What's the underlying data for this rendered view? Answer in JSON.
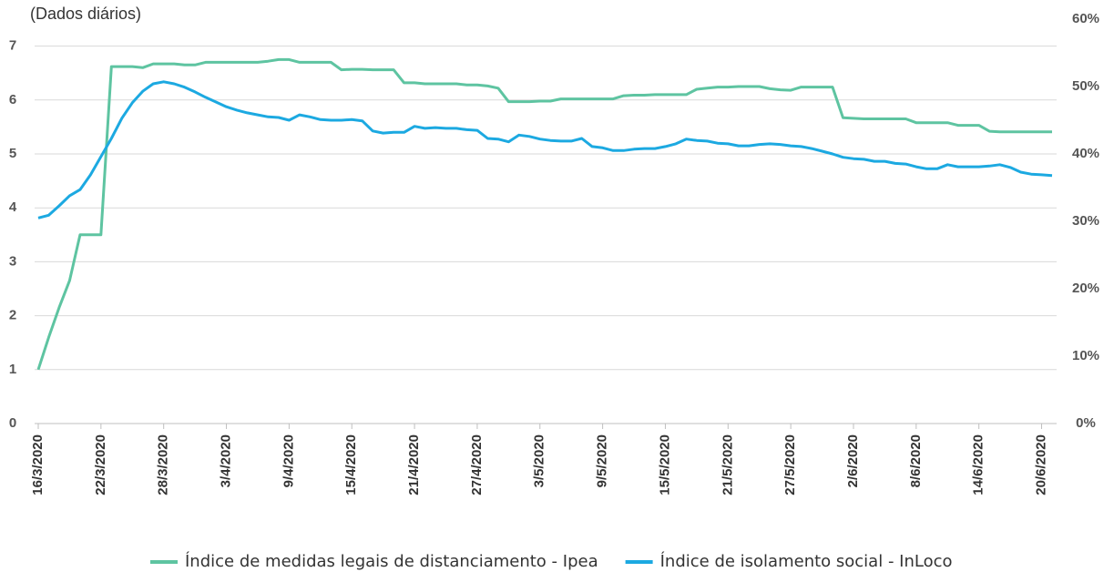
{
  "chart_data": {
    "type": "line",
    "subtitle": "(Dados diários)",
    "categories": [
      "16/3/2020",
      null,
      null,
      null,
      null,
      null,
      "22/3/2020",
      null,
      null,
      null,
      null,
      null,
      "28/3/2020",
      null,
      null,
      null,
      null,
      null,
      "3/4/2020",
      null,
      null,
      null,
      null,
      null,
      "9/4/2020",
      null,
      null,
      null,
      null,
      null,
      "15/4/2020",
      null,
      null,
      null,
      null,
      null,
      "21/4/2020",
      null,
      null,
      null,
      null,
      null,
      "27/4/2020",
      null,
      null,
      null,
      null,
      null,
      "3/5/2020",
      null,
      null,
      null,
      null,
      null,
      "9/5/2020",
      null,
      null,
      null,
      null,
      null,
      "15/5/2020",
      null,
      null,
      null,
      null,
      null,
      "21/5/2020",
      null,
      null,
      null,
      null,
      null,
      "27/5/2020",
      null,
      null,
      null,
      null,
      null,
      "2/6/2020",
      null,
      null,
      null,
      null,
      null,
      "8/6/2020",
      null,
      null,
      null,
      null,
      null,
      "14/6/2020",
      null,
      null,
      null,
      null,
      null,
      "20/6/2020",
      null
    ],
    "series": [
      {
        "name": "Índice de medidas legais de distanciamento - Ipea",
        "color": "#5ec4a1",
        "values": [
          1.0,
          1.6,
          2.15,
          2.65,
          3.5,
          3.5,
          3.5,
          6.62,
          6.62,
          6.62,
          6.6,
          6.67,
          6.67,
          6.67,
          6.65,
          6.65,
          6.7,
          6.7,
          6.7,
          6.7,
          6.7,
          6.7,
          6.72,
          6.75,
          6.75,
          6.7,
          6.7,
          6.7,
          6.7,
          6.56,
          6.57,
          6.57,
          6.56,
          6.56,
          6.56,
          6.32,
          6.32,
          6.3,
          6.3,
          6.3,
          6.3,
          6.28,
          6.28,
          6.26,
          6.22,
          5.97,
          5.97,
          5.97,
          5.98,
          5.98,
          6.02,
          6.02,
          6.02,
          6.02,
          6.02,
          6.02,
          6.08,
          6.09,
          6.09,
          6.1,
          6.1,
          6.1,
          6.1,
          6.2,
          6.22,
          6.24,
          6.24,
          6.25,
          6.25,
          6.25,
          6.21,
          6.19,
          6.18,
          6.24,
          6.24,
          6.24,
          6.24,
          5.67,
          5.66,
          5.65,
          5.65,
          5.65,
          5.65,
          5.65,
          5.58,
          5.58,
          5.58,
          5.58,
          5.53,
          5.53,
          5.53,
          5.42,
          5.41,
          5.41,
          5.41,
          5.41,
          5.41,
          5.41
        ]
      },
      {
        "name": "Índice de isolamento social - InLoco",
        "color": "#1ca9e1",
        "axis": "y2",
        "values": [
          30.5,
          30.9,
          32.3,
          33.8,
          34.7,
          36.9,
          39.6,
          42.3,
          45.3,
          47.6,
          49.3,
          50.4,
          50.7,
          50.4,
          49.9,
          49.2,
          48.4,
          47.7,
          47.0,
          46.5,
          46.1,
          45.8,
          45.5,
          45.4,
          45.0,
          45.8,
          45.5,
          45.1,
          45.0,
          45.0,
          45.1,
          44.9,
          43.4,
          43.1,
          43.2,
          43.2,
          44.1,
          43.8,
          43.9,
          43.8,
          43.8,
          43.6,
          43.5,
          42.3,
          42.2,
          41.8,
          42.8,
          42.6,
          42.2,
          42.0,
          41.9,
          41.9,
          42.3,
          41.1,
          40.9,
          40.5,
          40.5,
          40.7,
          40.8,
          40.8,
          41.1,
          41.5,
          42.2,
          42.0,
          41.9,
          41.6,
          41.5,
          41.2,
          41.2,
          41.4,
          41.5,
          41.4,
          41.2,
          41.1,
          40.8,
          40.4,
          40.0,
          39.5,
          39.3,
          39.2,
          38.9,
          38.9,
          38.6,
          38.5,
          38.1,
          37.8,
          37.8,
          38.4,
          38.1,
          38.1,
          38.1,
          38.2,
          38.4,
          38.0,
          37.3,
          37.0,
          36.9,
          36.8
        ]
      }
    ],
    "ylim": [
      0,
      7.5
    ],
    "yticks": [
      0,
      1,
      2,
      3,
      4,
      5,
      6,
      7
    ],
    "y2lim": [
      0,
      60
    ],
    "y2ticks": [
      {
        "value": 0,
        "label": "0%"
      },
      {
        "value": 10,
        "label": "10%"
      },
      {
        "value": 20,
        "label": "20%"
      },
      {
        "value": 30,
        "label": "30%"
      },
      {
        "value": 40,
        "label": "40%"
      },
      {
        "value": 50,
        "label": "50%"
      },
      {
        "value": 60,
        "label": "60%"
      }
    ],
    "grid": true,
    "legend": "bottom"
  }
}
